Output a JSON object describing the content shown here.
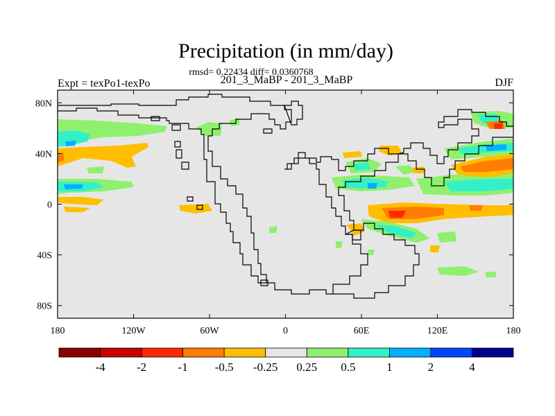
{
  "title": "Precipitation (in mm/day)",
  "stats_line": "rmsd= 0.22434 diff= 0.0360768",
  "case_line": "201_3_MaBP - 201_3_MaBP",
  "expt_label": "Expt = texPo1-texPo",
  "season": "DJF",
  "axes": {
    "lat_ticks": [
      {
        "value": 80,
        "label": "80N"
      },
      {
        "value": 40,
        "label": "40N"
      },
      {
        "value": 0,
        "label": "0"
      },
      {
        "value": -40,
        "label": "40S"
      },
      {
        "value": -80,
        "label": "80S"
      }
    ],
    "lon_ticks": [
      {
        "value": -180,
        "label": "180"
      },
      {
        "value": -120,
        "label": "120W"
      },
      {
        "value": -60,
        "label": "60W"
      },
      {
        "value": 0,
        "label": "0"
      },
      {
        "value": 60,
        "label": "60E"
      },
      {
        "value": 120,
        "label": "120E"
      },
      {
        "value": 180,
        "label": "180"
      }
    ],
    "lon_range": [
      -180,
      180
    ],
    "lat_range": [
      -90,
      90
    ]
  },
  "colorbar": {
    "colors": [
      "#8b0000",
      "#c80000",
      "#ff2a00",
      "#ff7d00",
      "#ffbe00",
      "#e6e6e6",
      "#8ff06e",
      "#33f0c8",
      "#00b0ff",
      "#0046ff",
      "#000090"
    ],
    "labels": [
      "-4",
      "-2",
      "-1",
      "-0.5",
      "-0.25",
      "0.25",
      "0.5",
      "1",
      "2",
      "4"
    ]
  },
  "colors": {
    "background": "#e6e6e6",
    "green": "#8ff06e",
    "cyan": "#33f0c8",
    "lightblue": "#00b0ff",
    "yellow": "#ffbe00",
    "orange": "#ff7d00",
    "red": "#ff2a00"
  }
}
